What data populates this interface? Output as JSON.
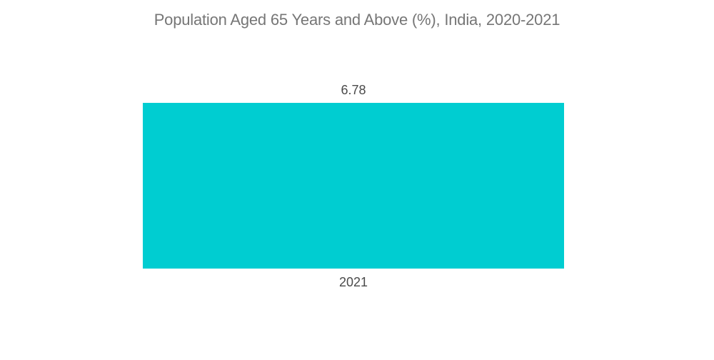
{
  "chart_data": {
    "type": "bar",
    "title": "Population Aged 65 Years and Above (%), India, 2020-2021",
    "categories": [
      "2021"
    ],
    "values": [
      6.78
    ],
    "value_labels": [
      "6.78"
    ],
    "xlabel": "",
    "ylabel": "",
    "ylim": [
      0,
      6.78
    ],
    "grid": false,
    "axes_visible": false,
    "legend": "none",
    "bar_color": "#00CDD1",
    "title_color": "#767676",
    "label_color": "#4a4a4a",
    "background_color": "#ffffff"
  }
}
